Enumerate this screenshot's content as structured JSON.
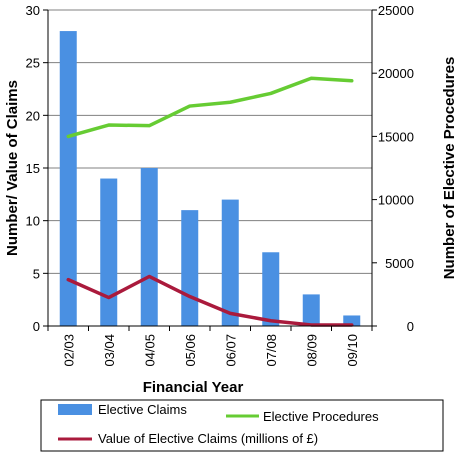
{
  "chart_data": {
    "type": "bar",
    "categories": [
      "02/03",
      "03/04",
      "04/05",
      "05/06",
      "06/07",
      "07/08",
      "08/09",
      "09/10"
    ],
    "xlabel": "Financial Year",
    "ylabel": "Number/ Value of Claims",
    "y2label": "Number of Elective Procedures",
    "ylim": [
      0,
      30
    ],
    "y2lim": [
      0,
      25000
    ],
    "yticks": [
      0,
      5,
      10,
      15,
      20,
      25,
      30
    ],
    "y2ticks": [
      0,
      5000,
      10000,
      15000,
      20000,
      25000
    ],
    "grid": true,
    "legend_position": "bottom",
    "series": [
      {
        "name": "Elective Claims",
        "kind": "bar",
        "axis": "left",
        "color": "#4a90e2",
        "values": [
          28,
          14,
          15,
          11,
          12,
          7,
          3,
          1
        ]
      },
      {
        "name": "Elective Procedures",
        "kind": "line",
        "axis": "right",
        "color": "#66cc33",
        "values": [
          15000,
          15900,
          15850,
          17400,
          17700,
          18400,
          19600,
          19400
        ]
      },
      {
        "name": "Value of Elective Claims (millions of £)",
        "kind": "line",
        "axis": "left",
        "color": "#aa1a3c",
        "values": [
          4.4,
          2.7,
          4.7,
          2.8,
          1.2,
          0.5,
          0.1,
          0.1
        ]
      }
    ]
  }
}
